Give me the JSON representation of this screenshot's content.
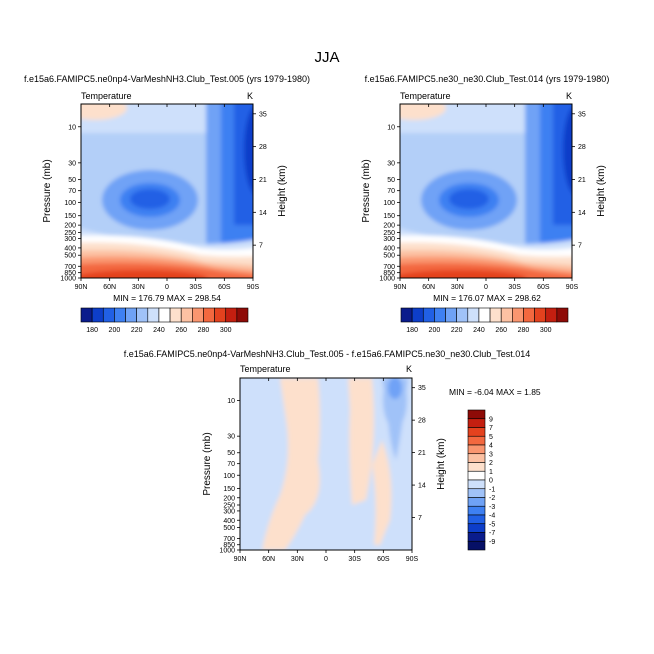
{
  "figure": {
    "title": "JJA"
  },
  "chart_data": [
    {
      "type": "heatmap",
      "title": "f.e15a6.FAMIPC5.ne0np4-VarMeshNH3.Club_Test.005 (yrs 1979-1980)",
      "left_label": "Temperature",
      "units": "K",
      "xlabel": "",
      "ylabel": "Pressure (mb)",
      "ylabel_right": "Height (km)",
      "x_ticks": [
        "90N",
        "60N",
        "30N",
        "0",
        "30S",
        "60S",
        "90S"
      ],
      "y_ticks": [
        "10",
        "30",
        "50",
        "70",
        "100",
        "150",
        "200",
        "250",
        "300",
        "400",
        "500",
        "700",
        "850",
        "1000"
      ],
      "height_ticks": [
        "35",
        "28",
        "21",
        "14",
        "7"
      ],
      "stats": "MIN = 176.79   MAX = 298.54",
      "colorbar": {
        "orientation": "horizontal",
        "labels": [
          "180",
          "190",
          "200",
          "210",
          "220",
          "230",
          "240",
          "250",
          "260",
          "270",
          "280",
          "290",
          "300"
        ],
        "colors": [
          "#0a1c8c",
          "#0d3ec9",
          "#2160e5",
          "#3e80f2",
          "#6fa2f6",
          "#a0c2f8",
          "#cee0fb",
          "#ffffff",
          "#fde0cc",
          "#fcc1a3",
          "#fa9670",
          "#f3683f",
          "#e4421e",
          "#c41f10",
          "#8e0b07"
        ]
      }
    },
    {
      "type": "heatmap",
      "title": "f.e15a6.FAMIPC5.ne30_ne30.Club_Test.014 (yrs 1979-1980)",
      "left_label": "Temperature",
      "units": "K",
      "xlabel": "",
      "ylabel": "Pressure (mb)",
      "ylabel_right": "Height (km)",
      "x_ticks": [
        "90N",
        "60N",
        "30N",
        "0",
        "30S",
        "60S",
        "90S"
      ],
      "y_ticks": [
        "10",
        "30",
        "50",
        "70",
        "100",
        "150",
        "200",
        "250",
        "300",
        "400",
        "500",
        "700",
        "850",
        "1000"
      ],
      "height_ticks": [
        "35",
        "28",
        "21",
        "14",
        "7"
      ],
      "stats": "MIN = 176.07   MAX = 298.62"
    },
    {
      "type": "heatmap",
      "title": "f.e15a6.FAMIPC5.ne0np4-VarMeshNH3.Club_Test.005 - f.e15a6.FAMIPC5.ne30_ne30.Club_Test.014",
      "left_label": "Temperature",
      "units": "K",
      "xlabel": "",
      "ylabel": "Pressure (mb)",
      "ylabel_right": "Height (km)",
      "x_ticks": [
        "90N",
        "60N",
        "30N",
        "0",
        "30S",
        "60S",
        "90S"
      ],
      "y_ticks": [
        "10",
        "30",
        "50",
        "70",
        "100",
        "150",
        "200",
        "250",
        "300",
        "400",
        "500",
        "700",
        "850",
        "1000"
      ],
      "height_ticks": [
        "35",
        "28",
        "21",
        "14",
        "7"
      ],
      "stats": "MIN =  -6.04   MAX =   1.85",
      "colorbar": {
        "orientation": "vertical",
        "labels": [
          "9",
          "7",
          "5",
          "4",
          "3",
          "2",
          "1",
          "0",
          "-1",
          "-2",
          "-3",
          "-4",
          "-5",
          "-7",
          "-9"
        ],
        "colors": [
          "#8e0b07",
          "#c41f10",
          "#e4421e",
          "#f3683f",
          "#fa9670",
          "#fcc1a3",
          "#fde0cc",
          "#ffffff",
          "#cee0fb",
          "#a0c2f8",
          "#6fa2f6",
          "#3e80f2",
          "#2160e5",
          "#0d3ec9",
          "#0a1c8c",
          "#061066"
        ]
      }
    }
  ]
}
